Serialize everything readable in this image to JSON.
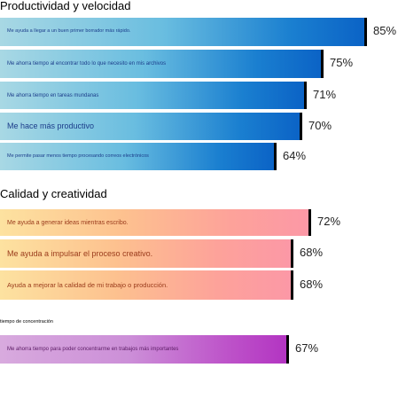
{
  "chart_data": {
    "type": "bar",
    "orientation": "horizontal",
    "value_format": "{v}%",
    "groups": [
      {
        "title": "Productividad y velocidad",
        "gradient": [
          "#a8d8e4",
          "#0b63c6"
        ],
        "bars": [
          {
            "label": "Me ayuda a llegar a un buen primer borrador más rápido.",
            "value": 85,
            "display": "85%"
          },
          {
            "label": "Me ahorra tiempo al encontrar todo lo que necesito en mis archivos",
            "value": 75,
            "display": "75%"
          },
          {
            "label": "Me ahorra tiempo en tareas mundanas",
            "value": 71,
            "display": "71%"
          },
          {
            "label": "Me hace más productivo",
            "value": 70,
            "display": "70%"
          },
          {
            "label": "Me permite pasar menos tiempo procesando correos electrónicos",
            "value": 64,
            "display": "64%"
          }
        ]
      },
      {
        "title": "Calidad y creatividad",
        "gradient": [
          "#fde2a0",
          "#fc98a6"
        ],
        "bars": [
          {
            "label": "Me ayuda a generar ideas mientras escribo.",
            "value": 72,
            "display": "72%"
          },
          {
            "label": "Me ayuda a impulsar el proceso creativo.",
            "value": 68,
            "display": "68%"
          },
          {
            "label": "Ayuda a mejorar la calidad de mi trabajo o producción.",
            "value": 68,
            "display": "68%"
          }
        ]
      },
      {
        "title": "tiempo de concentración",
        "gradient": [
          "#d8aade",
          "#b335c2"
        ],
        "bars": [
          {
            "label": "Me ahorra tiempo para poder concentrarme en trabajos más importantes",
            "value": 67,
            "display": "67%"
          }
        ]
      }
    ]
  }
}
